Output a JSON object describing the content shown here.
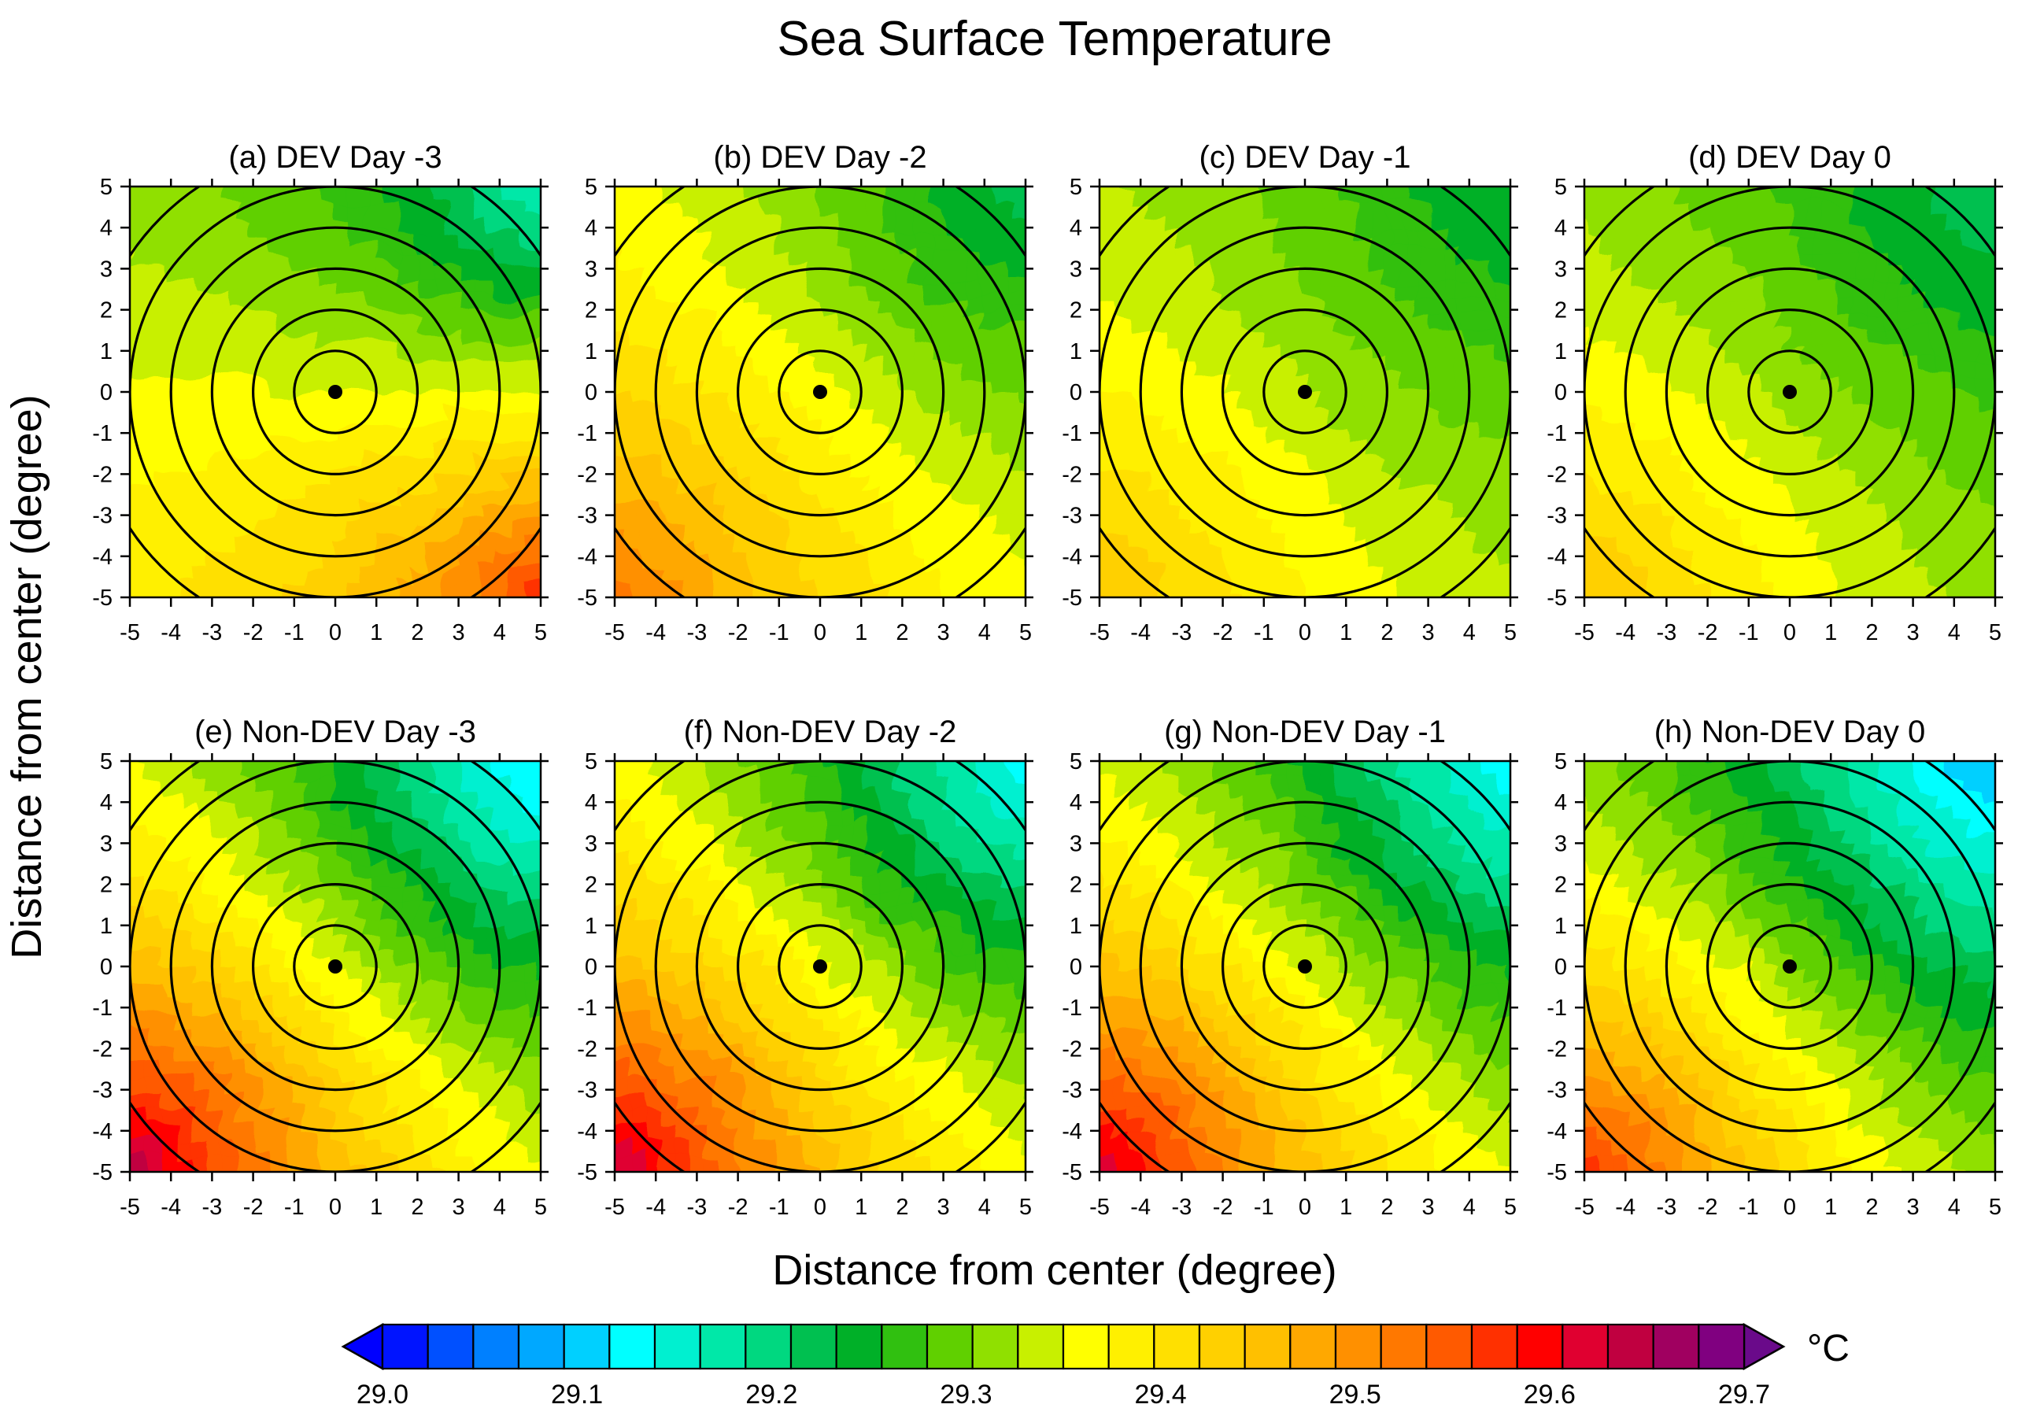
{
  "chart_data": {
    "type": "heatmap",
    "title": "Sea Surface Temperature",
    "xlabel": "Distance from center (degree)",
    "ylabel": "Distance from center (degree)",
    "xlim": [
      -5,
      5
    ],
    "ylim": [
      -5,
      5
    ],
    "ticks": [
      -5,
      -4,
      -3,
      -2,
      -1,
      0,
      1,
      2,
      3,
      4,
      5
    ],
    "tick_labels": [
      "-5",
      "-4",
      "-3",
      "-2",
      "-1",
      "0",
      "1",
      "2",
      "3",
      "4",
      "5"
    ],
    "range_ring_radii_deg": [
      1,
      2,
      3,
      4,
      5,
      6
    ],
    "center_marker": [
      0,
      0
    ],
    "panels": [
      {
        "label": "(a) DEV Day -3",
        "value_range": [
          29.18,
          29.62
        ],
        "warm_direction": "bottom-right",
        "cool_direction": "top-right"
      },
      {
        "label": "(b) DEV Day -2",
        "value_range": [
          29.24,
          29.56
        ],
        "warm_direction": "bottom-left",
        "cool_direction": "top-right"
      },
      {
        "label": "(c) DEV Day -1",
        "value_range": [
          29.25,
          29.48
        ],
        "warm_direction": "bottom-left",
        "cool_direction": "top-right"
      },
      {
        "label": "(d) DEV Day 0",
        "value_range": [
          29.23,
          29.48
        ],
        "warm_direction": "bottom-left",
        "cool_direction": "top-right"
      },
      {
        "label": "(e) Non-DEV Day -3",
        "value_range": [
          29.12,
          29.69
        ],
        "warm_direction": "bottom-left",
        "cool_direction": "top-right"
      },
      {
        "label": "(f) Non-DEV Day -2",
        "value_range": [
          29.14,
          29.68
        ],
        "warm_direction": "bottom-left",
        "cool_direction": "top-right"
      },
      {
        "label": "(g) Non-DEV Day -1",
        "value_range": [
          29.13,
          29.67
        ],
        "warm_direction": "bottom-left",
        "cool_direction": "top-right"
      },
      {
        "label": "(h) Non-DEV Day 0",
        "value_range": [
          29.1,
          29.62
        ],
        "warm_direction": "bottom-left",
        "cool_direction": "top-right"
      }
    ],
    "colorbar": {
      "unit": "°C",
      "min": 29.0,
      "max": 29.7,
      "step": 0.025,
      "labels": [
        "29.0",
        "29.1",
        "29.2",
        "29.3",
        "29.4",
        "29.5",
        "29.6",
        "29.7"
      ],
      "colors": [
        "#0014ff",
        "#0050ff",
        "#0080ff",
        "#00a8ff",
        "#00d0ff",
        "#00ffff",
        "#00f0d0",
        "#00e8a8",
        "#00d880",
        "#00c050",
        "#00b028",
        "#30c010",
        "#60d000",
        "#90e000",
        "#c8f000",
        "#ffff00",
        "#fff000",
        "#ffe000",
        "#ffd000",
        "#ffc000",
        "#ffa800",
        "#ff9000",
        "#ff7800",
        "#ff5a00",
        "#ff3000",
        "#ff0000",
        "#e00030",
        "#c00040",
        "#a00060",
        "#800080"
      ]
    }
  }
}
